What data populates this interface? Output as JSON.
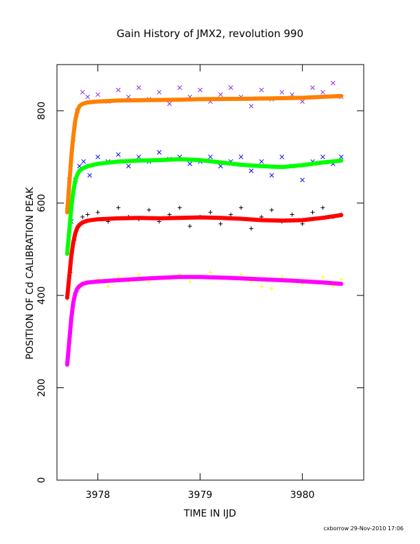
{
  "chart_data": {
    "type": "scatter",
    "title": "Gain History of JMX2, revolution 990",
    "xlabel": "TIME IN IJD",
    "ylabel": "POSITION OF Cd CALIBRATION PEAK",
    "xlim": [
      3977.6,
      3980.6
    ],
    "ylim": [
      0,
      900
    ],
    "xticks": [
      3978,
      3979,
      3980
    ],
    "yticks": [
      0,
      200,
      400,
      600,
      800
    ],
    "series": [
      {
        "marker": "x",
        "color": "#8a2be2",
        "x": [
          3977.72,
          3977.76,
          3977.8,
          3977.85,
          3977.9,
          3978.0,
          3978.1,
          3978.2,
          3978.3,
          3978.4,
          3978.5,
          3978.6,
          3978.7,
          3978.8,
          3978.9,
          3979.0,
          3979.1,
          3979.2,
          3979.3,
          3979.4,
          3979.5,
          3979.6,
          3979.7,
          3979.8,
          3979.9,
          3980.0,
          3980.1,
          3980.2,
          3980.3,
          3980.38
        ],
        "y": [
          650,
          740,
          800,
          840,
          830,
          835,
          820,
          845,
          830,
          850,
          825,
          840,
          815,
          850,
          830,
          845,
          820,
          835,
          850,
          830,
          810,
          845,
          825,
          840,
          835,
          820,
          850,
          840,
          860,
          830
        ]
      },
      {
        "marker": "x",
        "color": "#0000ff",
        "x": [
          3977.74,
          3977.78,
          3977.82,
          3977.86,
          3977.92,
          3978.0,
          3978.1,
          3978.2,
          3978.3,
          3978.4,
          3978.5,
          3978.6,
          3978.7,
          3978.8,
          3978.9,
          3979.0,
          3979.1,
          3979.2,
          3979.3,
          3979.4,
          3979.5,
          3979.6,
          3979.7,
          3979.8,
          3979.9,
          3980.0,
          3980.1,
          3980.2,
          3980.3,
          3980.38
        ],
        "y": [
          560,
          650,
          680,
          690,
          660,
          700,
          690,
          705,
          680,
          700,
          690,
          710,
          695,
          700,
          685,
          690,
          700,
          680,
          690,
          700,
          670,
          690,
          660,
          700,
          680,
          650,
          690,
          700,
          685,
          700
        ]
      },
      {
        "marker": "+",
        "color": "#000000",
        "x": [
          3977.73,
          3977.77,
          3977.81,
          3977.85,
          3977.9,
          3978.0,
          3978.1,
          3978.2,
          3978.3,
          3978.4,
          3978.5,
          3978.6,
          3978.7,
          3978.8,
          3978.9,
          3979.0,
          3979.1,
          3979.2,
          3979.3,
          3979.4,
          3979.5,
          3979.6,
          3979.7,
          3979.8,
          3979.9,
          3980.0,
          3980.1,
          3980.2,
          3980.3,
          3980.38
        ],
        "y": [
          450,
          520,
          550,
          570,
          575,
          580,
          560,
          590,
          570,
          565,
          585,
          560,
          575,
          590,
          550,
          570,
          580,
          555,
          575,
          590,
          545,
          570,
          585,
          560,
          575,
          555,
          580,
          590,
          570,
          575
        ]
      },
      {
        "marker": "+",
        "color": "#ffff00",
        "x": [
          3977.8,
          3977.85,
          3977.9,
          3978.0,
          3978.1,
          3978.2,
          3978.3,
          3978.4,
          3978.5,
          3978.6,
          3978.7,
          3978.8,
          3978.9,
          3979.0,
          3979.1,
          3979.2,
          3979.3,
          3979.4,
          3979.5,
          3979.6,
          3979.7,
          3979.8,
          3979.9,
          3980.0,
          3980.1,
          3980.2,
          3980.3,
          3980.38
        ],
        "y": [
          420,
          425,
          430,
          435,
          420,
          440,
          430,
          445,
          430,
          440,
          435,
          445,
          430,
          440,
          450,
          435,
          440,
          445,
          430,
          420,
          415,
          440,
          435,
          425,
          430,
          440,
          420,
          435
        ]
      },
      {
        "marker": "line",
        "color": "#ff8000",
        "x": [
          3977.7,
          3977.72,
          3977.74,
          3977.76,
          3977.78,
          3977.8,
          3977.82,
          3977.85,
          3977.9,
          3978.0,
          3978.2,
          3978.5,
          3978.8,
          3979.0,
          3979.5,
          3980.0,
          3980.38
        ],
        "y": [
          580,
          640,
          700,
          745,
          780,
          800,
          810,
          815,
          818,
          820,
          822,
          823,
          824,
          825,
          826,
          828,
          832
        ]
      },
      {
        "marker": "line",
        "color": "#00ff00",
        "x": [
          3977.7,
          3977.72,
          3977.74,
          3977.76,
          3977.78,
          3977.8,
          3977.82,
          3977.85,
          3977.9,
          3978.0,
          3978.2,
          3978.4,
          3978.6,
          3978.8,
          3979.0,
          3979.2,
          3979.4,
          3979.6,
          3979.8,
          3980.0,
          3980.2,
          3980.38
        ],
        "y": [
          490,
          540,
          590,
          625,
          650,
          662,
          670,
          675,
          680,
          685,
          690,
          692,
          693,
          695,
          693,
          688,
          683,
          680,
          678,
          682,
          688,
          692
        ]
      },
      {
        "marker": "line",
        "color": "#ff0000",
        "x": [
          3977.7,
          3977.72,
          3977.74,
          3977.76,
          3977.78,
          3977.8,
          3977.82,
          3977.85,
          3977.9,
          3978.0,
          3978.2,
          3978.4,
          3978.6,
          3978.8,
          3979.0,
          3979.2,
          3979.4,
          3979.6,
          3979.8,
          3980.0,
          3980.2,
          3980.38
        ],
        "y": [
          395,
          440,
          485,
          515,
          535,
          547,
          553,
          558,
          562,
          565,
          567,
          568,
          567,
          568,
          569,
          568,
          566,
          563,
          562,
          563,
          568,
          574
        ]
      },
      {
        "marker": "line",
        "color": "#ff00ff",
        "x": [
          3977.7,
          3977.72,
          3977.74,
          3977.76,
          3977.78,
          3977.8,
          3977.82,
          3977.85,
          3977.9,
          3978.0,
          3978.2,
          3978.5,
          3978.8,
          3979.0,
          3979.3,
          3979.6,
          3979.9,
          3980.2,
          3980.38
        ],
        "y": [
          250,
          300,
          350,
          385,
          405,
          415,
          420,
          425,
          428,
          430,
          433,
          437,
          440,
          440,
          438,
          435,
          432,
          428,
          425
        ]
      }
    ],
    "footer": "cxborrow 29-Nov-2010 17:06"
  }
}
